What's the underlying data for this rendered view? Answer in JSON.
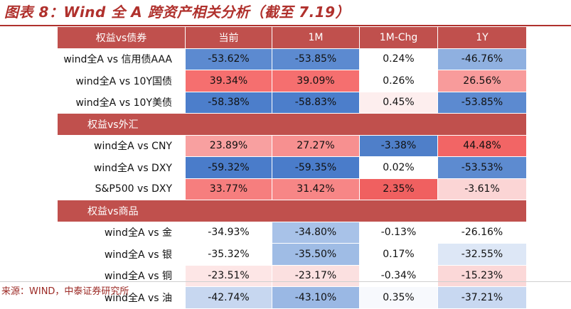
{
  "title": "图表 8：Wind 全 A 跨资产相关分析（截至 7.19）",
  "source": "来源：WIND，中泰证券研究所",
  "colors": {
    "header_bg": "#c0504d",
    "title": "#b0312d",
    "neg_strong": "#4f7fc9",
    "pos_strong": "#f06a6a"
  },
  "header": [
    "权益vs债券",
    "当前",
    "1M",
    "1M-Chg",
    "1Y"
  ],
  "sections": [
    {
      "title": "",
      "rows": [
        {
          "label": "wind全A vs 信用债AAA",
          "values": [
            "-53.62%",
            "-53.85%",
            "0.24%",
            "-46.76%"
          ],
          "bg": [
            "#5c8ad0",
            "#5c8ad0",
            "#ffffff",
            "#8fb0e0"
          ]
        },
        {
          "label": "wind全A vs 10Y国债",
          "values": [
            "39.34%",
            "39.09%",
            "0.26%",
            "26.56%"
          ],
          "bg": [
            "#f56f6f",
            "#f56f6f",
            "#ffffff",
            "#f89b9b"
          ]
        },
        {
          "label": "wind全A  vs 10Y美债",
          "values": [
            "-58.38%",
            "-58.83%",
            "0.45%",
            "-53.85%"
          ],
          "bg": [
            "#4c7ecb",
            "#4c7ecb",
            "#fdeeee",
            "#5c8ad0"
          ]
        }
      ]
    },
    {
      "title": "权益vs外汇",
      "rows": [
        {
          "label": "wind全A vs CNY",
          "values": [
            "23.89%",
            "27.27%",
            "-3.38%",
            "44.48%"
          ],
          "bg": [
            "#f8a0a0",
            "#f79090",
            "#4f7fc9",
            "#f26565"
          ]
        },
        {
          "label": "wind全A vs DXY",
          "values": [
            "-59.32%",
            "-59.35%",
            "0.02%",
            "-53.53%"
          ],
          "bg": [
            "#4a7cca",
            "#4a7cca",
            "#ffffff",
            "#5d8bd0"
          ]
        },
        {
          "label": "S&P500 vs DXY",
          "values": [
            "33.77%",
            "31.42%",
            "2.35%",
            "-3.61%"
          ],
          "bg": [
            "#f67e7e",
            "#f78686",
            "#f06060",
            "#fbd5d5"
          ]
        }
      ]
    },
    {
      "title": "权益vs商品",
      "rows": [
        {
          "label": "wind全A vs 金",
          "values": [
            "-34.93%",
            "-34.80%",
            "-0.13%",
            "-26.16%"
          ],
          "bg": [
            "#ffffff",
            "#a8c2e8",
            "#ffffff",
            "#ffffff"
          ]
        },
        {
          "label": "wind全A vs 银",
          "values": [
            "-35.32%",
            "-35.50%",
            "0.17%",
            "-32.55%"
          ],
          "bg": [
            "#ffffff",
            "#9fbce5",
            "#ffffff",
            "#dde7f6"
          ]
        },
        {
          "label": "wind全A vs 铜",
          "values": [
            "-23.51%",
            "-23.17%",
            "-0.34%",
            "-15.23%"
          ],
          "bg": [
            "#fde6e6",
            "#fbe0e0",
            "#ffffff",
            "#fbd8d8"
          ]
        },
        {
          "label": "wind全A vs 油",
          "values": [
            "-42.74%",
            "-43.10%",
            "0.35%",
            "-37.21%"
          ],
          "bg": [
            "#c7d7f0",
            "#9ab8e4",
            "#f7f9fd",
            "#c8d8f1"
          ]
        }
      ]
    }
  ]
}
